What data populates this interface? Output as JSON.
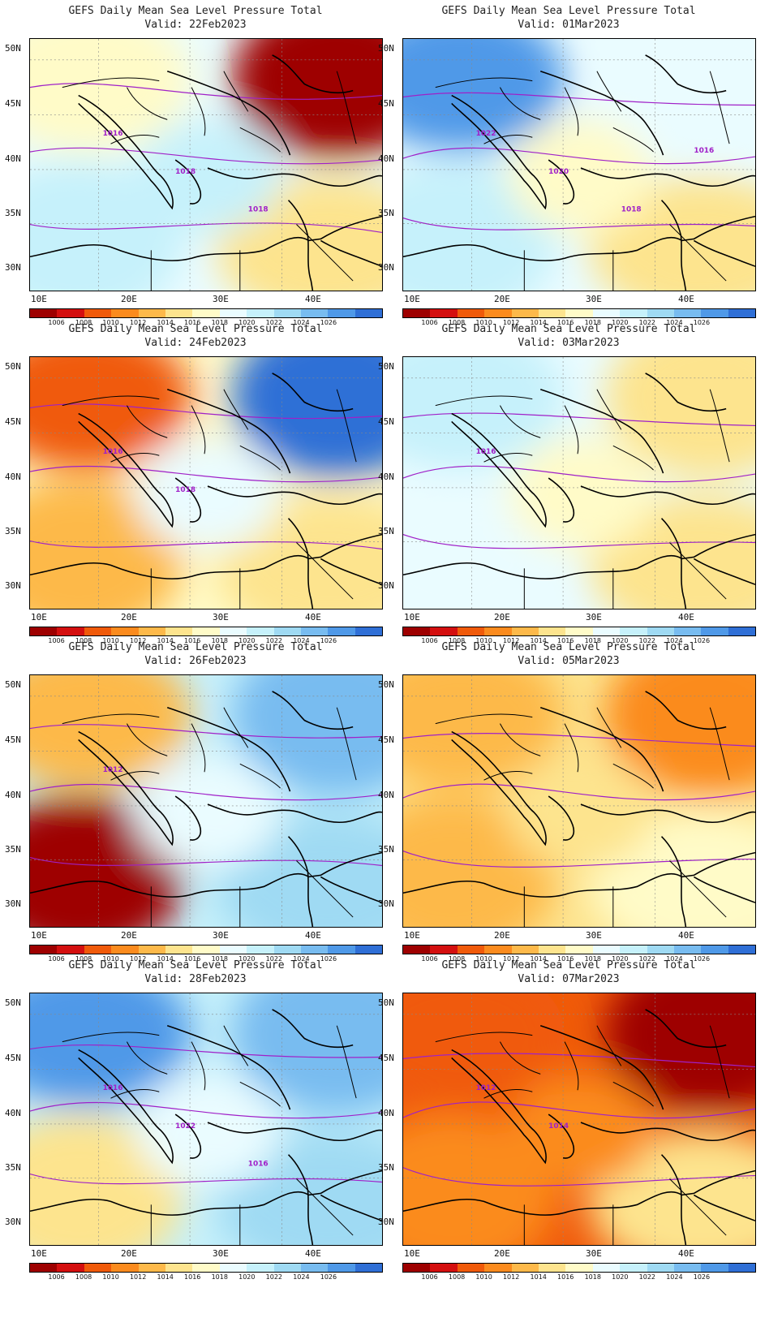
{
  "title": "GEFS Daily Mean Sea Level Pressure Total",
  "colorbar": {
    "labels": [
      "1006",
      "1008",
      "1010",
      "1012",
      "1014",
      "1016",
      "1018",
      "1020",
      "1022",
      "1024",
      "1026"
    ],
    "colors": [
      "#9e0000",
      "#d40f0f",
      "#f05a0a",
      "#fb8b1e",
      "#fdb94a",
      "#fde48e",
      "#fffbc8",
      "#eafcff",
      "#c6f1fb",
      "#9fdaf3",
      "#78bcf0",
      "#4f99e8",
      "#2f6fd6"
    ]
  },
  "axes": {
    "lat_labels": [
      "50N",
      "45N",
      "40N",
      "35N",
      "30N"
    ],
    "lon_labels": [
      "10E",
      "20E",
      "30E",
      "40E"
    ]
  },
  "panels": [
    {
      "valid": "Valid: 22Feb2023",
      "contour_labels": [
        "1016",
        "1018",
        "1018"
      ],
      "fields": {
        "base": "#eafcff",
        "nw": "#fffbc8",
        "ne": "#9e0000",
        "sw": "#c6f1fb",
        "se": "#fde48e",
        "center": "#c6f1fb"
      }
    },
    {
      "valid": "Valid: 24Feb2023",
      "contour_labels": [
        "1016",
        "1018"
      ],
      "fields": {
        "base": "#fffbc8",
        "nw": "#f05a0a",
        "ne": "#2f6fd6",
        "sw": "#fdb94a",
        "se": "#fde48e",
        "center": "#eafcff"
      }
    },
    {
      "valid": "Valid: 26Feb2023",
      "contour_labels": [
        "1012"
      ],
      "fields": {
        "base": "#c6f1fb",
        "nw": "#fdb94a",
        "ne": "#78bcf0",
        "sw": "#9e0000",
        "se": "#9fdaf3",
        "center": "#eafcff"
      }
    },
    {
      "valid": "Valid: 28Feb2023",
      "contour_labels": [
        "1016",
        "1022",
        "1016"
      ],
      "fields": {
        "base": "#c6f1fb",
        "nw": "#4f99e8",
        "ne": "#78bcf0",
        "sw": "#fde48e",
        "se": "#9fdaf3",
        "center": "#eafcff"
      }
    },
    {
      "valid": "Valid: 01Mar2023",
      "contour_labels": [
        "1022",
        "1020",
        "1018",
        "1016"
      ],
      "fields": {
        "base": "#eafcff",
        "nw": "#4f99e8",
        "ne": "#eafcff",
        "sw": "#c6f1fb",
        "se": "#fde48e",
        "center": "#fffbc8"
      }
    },
    {
      "valid": "Valid: 03Mar2023",
      "contour_labels": [
        "1016"
      ],
      "fields": {
        "base": "#eafcff",
        "nw": "#c6f1fb",
        "ne": "#fde48e",
        "sw": "#eafcff",
        "se": "#fde48e",
        "center": "#fffbc8"
      }
    },
    {
      "valid": "Valid: 05Mar2023",
      "contour_labels": [],
      "fields": {
        "base": "#fde48e",
        "nw": "#fdb94a",
        "ne": "#fb8b1e",
        "sw": "#fdb94a",
        "se": "#fffbc8",
        "center": "#fde48e"
      }
    },
    {
      "valid": "Valid: 07Mar2023",
      "contour_labels": [
        "1012",
        "1014"
      ],
      "fields": {
        "base": "#f05a0a",
        "nw": "#f05a0a",
        "ne": "#9e0000",
        "sw": "#fb8b1e",
        "se": "#fde48e",
        "center": "#fb8b1e"
      }
    }
  ]
}
